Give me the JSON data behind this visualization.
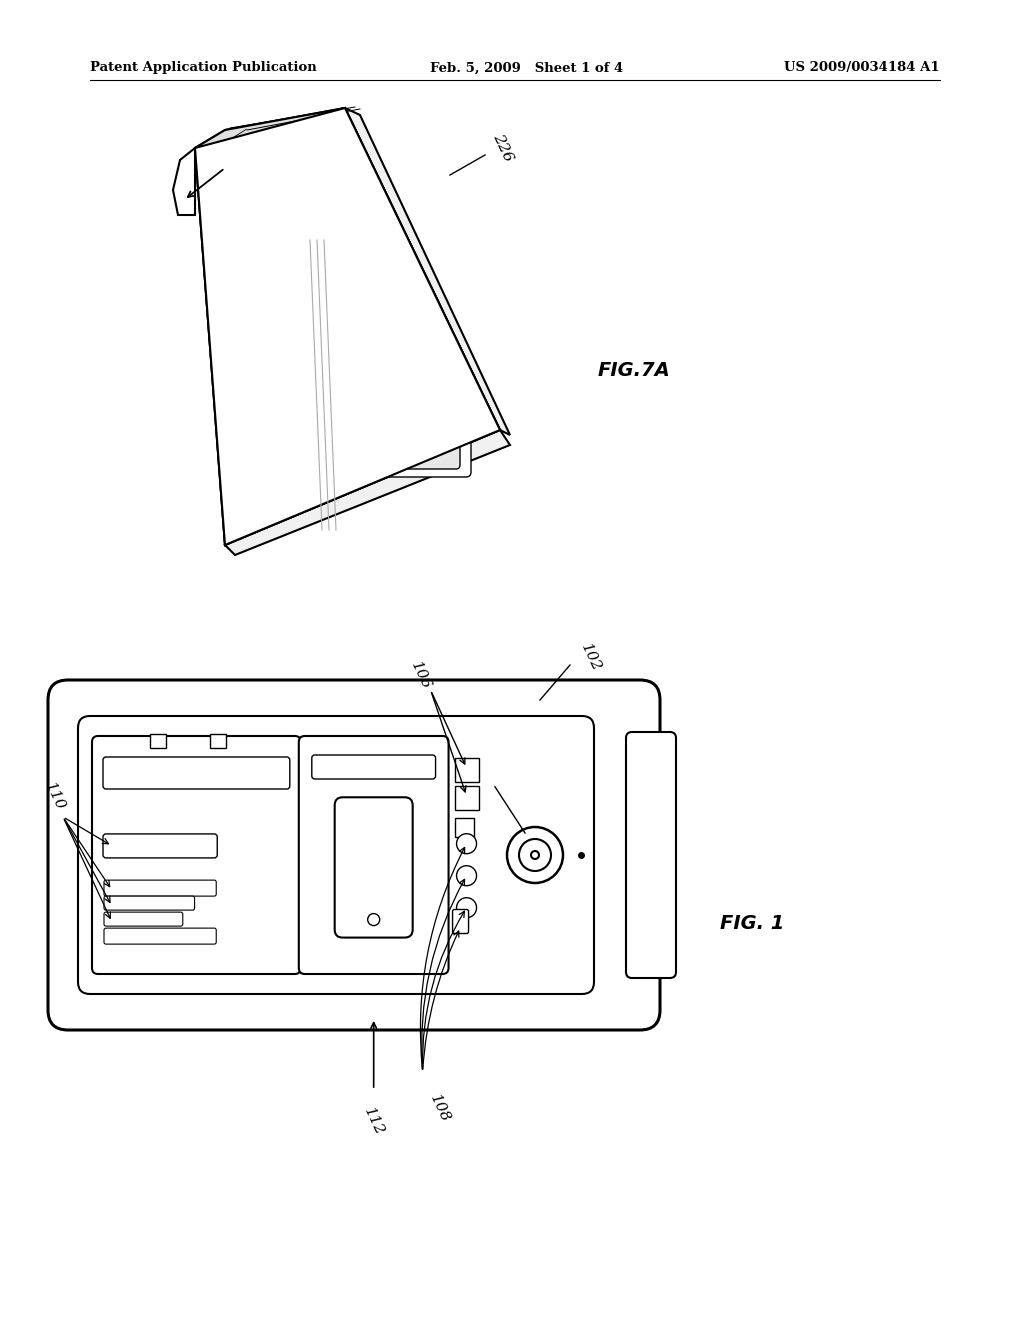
{
  "bg_color": "#ffffff",
  "lc": "#000000",
  "header_left": "Patent Application Publication",
  "header_mid": "Feb. 5, 2009   Sheet 1 of 4",
  "header_right": "US 2009/0034184 A1",
  "fig7a_label": "FIG.7A",
  "fig1_label": "FIG. 1"
}
